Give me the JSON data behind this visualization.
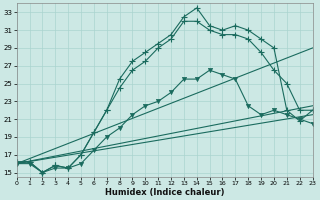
{
  "xlabel": "Humidex (Indice chaleur)",
  "bg_color": "#cce8e4",
  "grid_color": "#aad4cf",
  "line_color": "#1a6b5e",
  "xlim": [
    0,
    23
  ],
  "ylim": [
    14.5,
    34
  ],
  "yticks": [
    15,
    17,
    19,
    21,
    23,
    25,
    27,
    29,
    31,
    33
  ],
  "xticks": [
    0,
    1,
    2,
    3,
    4,
    5,
    6,
    7,
    8,
    9,
    10,
    11,
    12,
    13,
    14,
    15,
    16,
    17,
    18,
    19,
    20,
    21,
    22,
    23
  ],
  "series1_x": [
    0,
    1,
    2,
    3,
    4,
    5,
    6,
    7,
    8,
    9,
    10,
    11,
    12,
    13,
    14,
    15,
    16,
    17,
    18,
    19,
    20,
    21,
    22,
    23
  ],
  "series1_y": [
    16.2,
    16.2,
    15.0,
    15.8,
    15.5,
    17.0,
    19.5,
    22.0,
    25.5,
    27.5,
    28.5,
    29.5,
    30.5,
    32.5,
    33.5,
    31.5,
    31.0,
    31.5,
    31.0,
    30.0,
    29.0,
    22.0,
    20.8,
    22.0
  ],
  "series2_x": [
    0,
    1,
    2,
    3,
    4,
    5,
    6,
    7,
    8,
    9,
    10,
    11,
    12,
    13,
    14,
    15,
    16,
    17,
    18,
    19,
    20,
    21,
    22,
    23
  ],
  "series2_y": [
    16.2,
    16.2,
    15.0,
    15.8,
    15.5,
    17.0,
    19.5,
    22.0,
    24.5,
    26.5,
    27.5,
    29.0,
    30.0,
    32.0,
    32.0,
    31.0,
    30.5,
    30.5,
    30.0,
    28.5,
    26.5,
    25.0,
    22.0,
    22.0
  ],
  "series3_x": [
    0,
    1,
    2,
    3,
    4,
    5,
    6,
    7,
    8,
    9,
    10,
    11,
    12,
    13,
    14,
    15,
    16,
    17,
    18,
    19,
    20,
    21,
    22,
    23
  ],
  "series3_y": [
    16.0,
    16.0,
    15.0,
    15.5,
    15.5,
    16.0,
    17.5,
    19.0,
    20.0,
    21.5,
    22.5,
    23.0,
    24.0,
    25.5,
    25.5,
    26.5,
    26.0,
    25.5,
    22.5,
    21.5,
    22.0,
    21.5,
    21.0,
    20.5
  ],
  "line1_x": [
    0,
    23
  ],
  "line1_y": [
    16.0,
    29.0
  ],
  "line2_x": [
    0,
    23
  ],
  "line2_y": [
    16.0,
    22.5
  ],
  "line3_x": [
    0,
    23
  ],
  "line3_y": [
    16.0,
    21.5
  ]
}
